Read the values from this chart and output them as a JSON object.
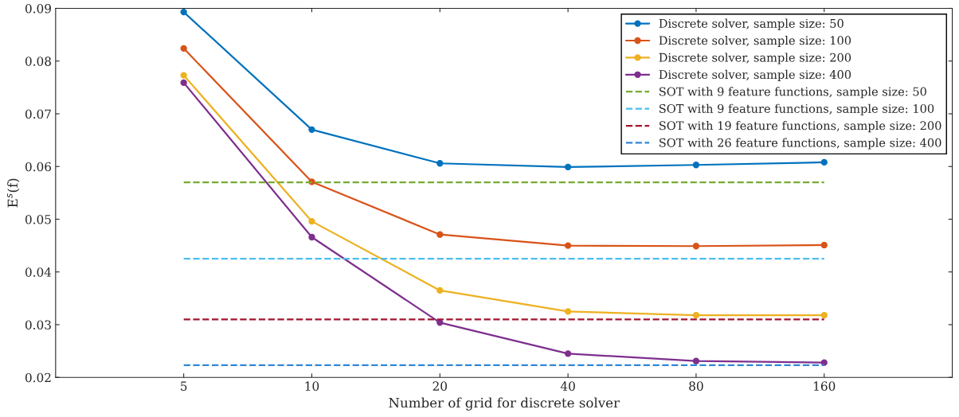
{
  "chart_data": {
    "type": "line",
    "xlabel": "Number of grid for discrete solver",
    "ylabel": "E$^{s}$(f)",
    "log": "x",
    "xlim": [
      2.5,
      320
    ],
    "xticks": [
      5,
      10,
      20,
      40,
      80,
      160
    ],
    "ylim": [
      0.02,
      0.09
    ],
    "yticks": [
      0.02,
      0.03,
      0.04,
      0.05,
      0.06,
      0.07,
      0.08,
      0.09
    ],
    "x": [
      5,
      10,
      20,
      40,
      80,
      160
    ],
    "grid": false,
    "legend": "top right",
    "series": [
      {
        "name": "Discrete solver, sample size: 50",
        "color": "#0072bd",
        "marker": "circle",
        "line_style": "solid",
        "values": [
          0.0893,
          0.067,
          0.0606,
          0.0599,
          0.0603,
          0.0608
        ]
      },
      {
        "name": "Discrete solver, sample size: 100",
        "color": "#d95319",
        "marker": "circle",
        "line_style": "solid",
        "values": [
          0.0824,
          0.0571,
          0.0471,
          0.045,
          0.0449,
          0.0451
        ]
      },
      {
        "name": "Discrete solver, sample size: 200",
        "color": "#edb120",
        "marker": "circle",
        "line_style": "solid",
        "values": [
          0.0773,
          0.0496,
          0.0365,
          0.0325,
          0.0318,
          0.0318
        ]
      },
      {
        "name": "Discrete solver, sample size: 400",
        "color": "#7e2f8e",
        "marker": "circle",
        "line_style": "solid",
        "values": [
          0.0759,
          0.0466,
          0.0304,
          0.0245,
          0.0231,
          0.0228
        ]
      },
      {
        "name": "SOT with 9 feature functions, sample size: 50",
        "color": "#77ac30",
        "marker": "none",
        "line_style": "dashed",
        "values": [
          0.057,
          0.057,
          0.057,
          0.057,
          0.057,
          0.057
        ]
      },
      {
        "name": "SOT with 9 feature functions, sample size: 100",
        "color": "#4dbeee",
        "marker": "none",
        "line_style": "dashed",
        "values": [
          0.0425,
          0.0425,
          0.0425,
          0.0425,
          0.0425,
          0.0425
        ]
      },
      {
        "name": "SOT with 19 feature functions, sample size: 200",
        "color": "#a2142f",
        "marker": "none",
        "line_style": "dashed",
        "values": [
          0.031,
          0.031,
          0.031,
          0.031,
          0.031,
          0.031
        ]
      },
      {
        "name": "SOT with 26 feature functions, sample size: 400",
        "color": "#2f86d6",
        "marker": "none",
        "line_style": "dashed",
        "values": [
          0.0223,
          0.0223,
          0.0223,
          0.0223,
          0.0223,
          0.0223
        ]
      }
    ]
  }
}
